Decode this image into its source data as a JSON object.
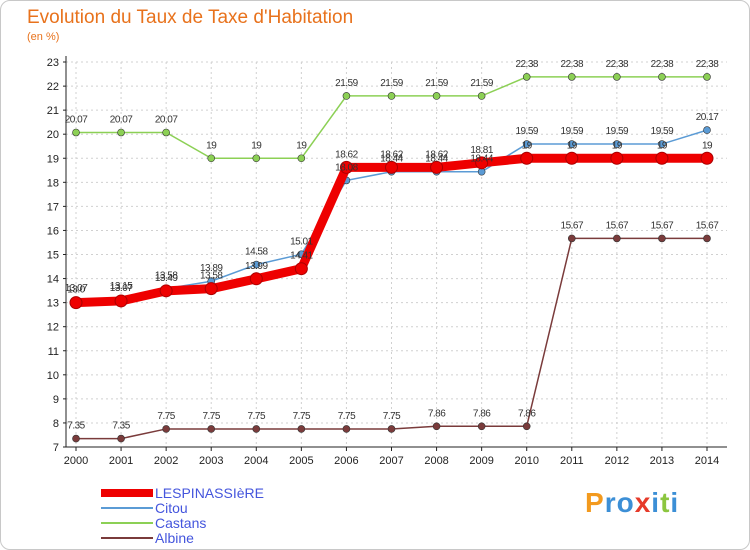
{
  "title": "Evolution du Taux de Taxe d'Habitation",
  "unit": "(en %)",
  "brand": {
    "letters": [
      "P",
      "r",
      "o",
      "x",
      "i",
      "t",
      "i"
    ],
    "colors": [
      "#f39a1e",
      "#3c8fd6",
      "#3c8fd6",
      "#e63a2a",
      "#3c8fd6",
      "#8cc63f",
      "#3c8fd6"
    ]
  },
  "chart_data": {
    "type": "line",
    "title": "Evolution du Taux de Taxe d'Habitation",
    "ylabel": "(en %)",
    "x": [
      "2000",
      "2001",
      "2002",
      "2003",
      "2004",
      "2005",
      "2006",
      "2007",
      "2008",
      "2009",
      "2010",
      "2011",
      "2012",
      "2013",
      "2014"
    ],
    "ylim": [
      7,
      23
    ],
    "yticks": [
      7,
      8,
      9,
      10,
      11,
      12,
      13,
      14,
      15,
      16,
      17,
      18,
      19,
      20,
      21,
      22,
      23
    ],
    "grid": true,
    "legend_position": "bottom-left",
    "series": [
      {
        "name": "LESPINASSIèRE",
        "color": "#ee0000",
        "style": "thick",
        "values": [
          13.0,
          13.07,
          13.49,
          13.58,
          13.99,
          14.41,
          18.62,
          18.62,
          18.62,
          18.81,
          19,
          19,
          19,
          19,
          19
        ],
        "labels": [
          "13.0",
          "13.07",
          "13.49",
          "13.58",
          "13.99",
          "14.41",
          "18.62",
          "18.62",
          "18.62",
          "18.81",
          "19",
          "19",
          "19",
          "19",
          "19"
        ]
      },
      {
        "name": "Citou",
        "color": "#5b9bd5",
        "style": "thin",
        "values": [
          13.07,
          13.15,
          13.58,
          13.89,
          14.58,
          15.01,
          18.08,
          18.44,
          18.44,
          18.44,
          19.59,
          19.59,
          19.59,
          19.59,
          20.17
        ],
        "labels": [
          "13.07",
          "13.15",
          "13.58",
          "13.89",
          "14.58",
          "15.01",
          "18.08",
          "18.44",
          "18.44",
          "18.44",
          "19.59",
          "19.59",
          "19.59",
          "19.59",
          "20.17"
        ]
      },
      {
        "name": "Castans",
        "color": "#8cd055",
        "style": "thin",
        "values": [
          20.07,
          20.07,
          20.07,
          19,
          19,
          19,
          21.59,
          21.59,
          21.59,
          21.59,
          22.38,
          22.38,
          22.38,
          22.38,
          22.38
        ],
        "labels": [
          "20.07",
          "20.07",
          "20.07",
          "19",
          "19",
          "19",
          "21.59",
          "21.59",
          "21.59",
          "21.59",
          "22.38",
          "22.38",
          "22.38",
          "22.38",
          "22.38"
        ]
      },
      {
        "name": "Albine",
        "color": "#7a3b3b",
        "style": "thin",
        "values": [
          7.35,
          7.35,
          7.75,
          7.75,
          7.75,
          7.75,
          7.75,
          7.75,
          7.86,
          7.86,
          7.86,
          15.67,
          15.67,
          15.67,
          15.67
        ],
        "labels": [
          "7.35",
          "7.35",
          "7.75",
          "7.75",
          "7.75",
          "7.75",
          "7.75",
          "7.75",
          "7.86",
          "7.86",
          "7.86",
          "15.67",
          "15.67",
          "15.67",
          "15.67"
        ]
      }
    ]
  }
}
